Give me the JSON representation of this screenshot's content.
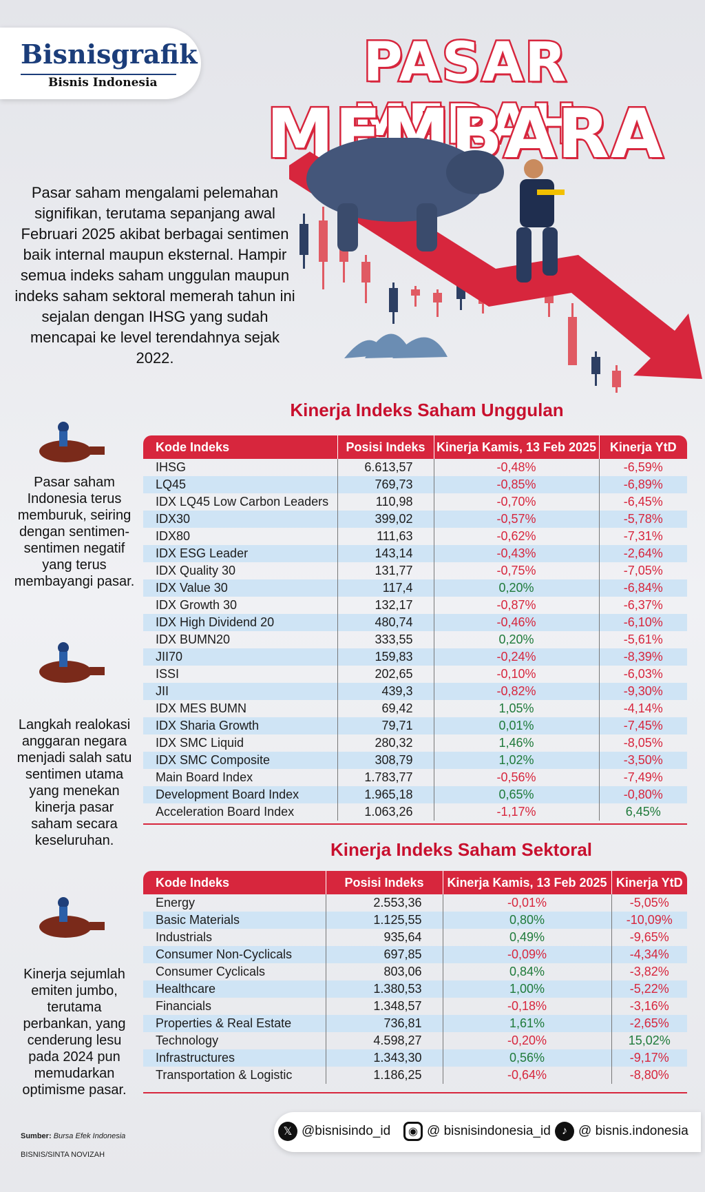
{
  "logo": {
    "brand": "Bisnisgrafik",
    "publisher": "Bisnis Indonesia"
  },
  "title": {
    "line1": "PASAR MERAH",
    "line2": "MEMBARA"
  },
  "intro": "Pasar saham mengalami pelemahan signifikan, terutama sepanjang awal Februari 2025 akibat berbagai sentimen baik internal maupun eksternal. Hampir semua indeks saham unggulan maupun indeks saham sektoral memerah tahun ini sejalan dengan IHSG yang sudah mencapai ke level terendahnya sejak 2022.",
  "colors": {
    "red": "#d7263d",
    "blue": "#cfe4f5",
    "green": "#1f7a3a"
  },
  "unggulan": {
    "heading": "Kinerja Indeks Saham Unggulan",
    "headers": [
      "Kode Indeks",
      "Posisi Indeks",
      "Kinerja Kamis, 13 Feb 2025",
      "Kinerja YtD"
    ],
    "rows": [
      [
        "IHSG",
        "6.613,57",
        "-0,48%",
        "-6,59%"
      ],
      [
        "LQ45",
        "769,73",
        "-0,85%",
        "-6,89%"
      ],
      [
        "IDX LQ45 Low Carbon Leaders",
        "110,98",
        "-0,70%",
        "-6,45%"
      ],
      [
        "IDX30",
        "399,02",
        "-0,57%",
        "-5,78%"
      ],
      [
        "IDX80",
        "111,63",
        "-0,62%",
        "-7,31%"
      ],
      [
        "IDX ESG Leader",
        "143,14",
        "-0,43%",
        "-2,64%"
      ],
      [
        "IDX Quality 30",
        "131,77",
        "-0,75%",
        "-7,05%"
      ],
      [
        "IDX Value 30",
        "117,4",
        "0,20%",
        "-6,84%"
      ],
      [
        "IDX Growth 30",
        "132,17",
        "-0,87%",
        "-6,37%"
      ],
      [
        "IDX High Dividend 20",
        "480,74",
        "-0,46%",
        "-6,10%"
      ],
      [
        "IDX BUMN20",
        "333,55",
        "0,20%",
        "-5,61%"
      ],
      [
        "JII70",
        "159,83",
        "-0,24%",
        "-8,39%"
      ],
      [
        "ISSI",
        "202,65",
        "-0,10%",
        "-6,03%"
      ],
      [
        "JII",
        "439,3",
        "-0,82%",
        "-9,30%"
      ],
      [
        "IDX MES BUMN",
        "69,42",
        "1,05%",
        "-4,14%"
      ],
      [
        "IDX Sharia Growth",
        "79,71",
        "0,01%",
        "-7,45%"
      ],
      [
        "IDX SMC Liquid",
        "280,32",
        "1,46%",
        "-8,05%"
      ],
      [
        "IDX SMC Composite",
        "308,79",
        "1,02%",
        "-3,50%"
      ],
      [
        "Main Board Index",
        "1.783,77",
        "-0,56%",
        "-7,49%"
      ],
      [
        "Development Board Index",
        "1.965,18",
        "0,65%",
        "-0,80%"
      ],
      [
        "Acceleration Board Index",
        "1.063,26",
        "-1,17%",
        "6,45%"
      ]
    ]
  },
  "sektoral": {
    "heading": "Kinerja Indeks Saham Sektoral",
    "headers": [
      "Kode Indeks",
      "Posisi Indeks",
      "Kinerja Kamis, 13 Feb 2025",
      "Kinerja YtD"
    ],
    "rows": [
      [
        "Energy",
        "2.553,36",
        "-0,01%",
        "-5,05%"
      ],
      [
        "Basic Materials",
        "1.125,55",
        "0,80%",
        "-10,09%"
      ],
      [
        "Industrials",
        "935,64",
        "0,49%",
        "-9,65%"
      ],
      [
        "Consumer Non-Cyclicals",
        "697,85",
        "-0,09%",
        "-4,34%"
      ],
      [
        "Consumer Cyclicals",
        "803,06",
        "0,84%",
        "-3,82%"
      ],
      [
        "Healthcare",
        "1.380,53",
        "1,00%",
        "-5,22%"
      ],
      [
        "Financials",
        "1.348,57",
        "-0,18%",
        "-3,16%"
      ],
      [
        "Properties & Real Estate",
        "736,81",
        "1,61%",
        "-2,65%"
      ],
      [
        "Technology",
        "4.598,27",
        "-0,20%",
        "15,02%"
      ],
      [
        "Infrastructures",
        "1.343,30",
        "0,56%",
        "-9,17%"
      ],
      [
        "Transportation & Logistic",
        "1.186,25",
        "-0,64%",
        "-8,80%"
      ]
    ]
  },
  "side": [
    "Pasar saham Indonesia terus memburuk, seiring dengan sentimen-sentimen negatif yang terus membayangi pasar.",
    "Langkah realokasi anggaran negara menjadi salah satu sentimen utama yang menekan kinerja pasar saham secara keseluruhan.",
    "Kinerja sejumlah emiten jumbo, terutama perbankan, yang cenderung lesu pada 2024 pun memudarkan optimisme pasar."
  ],
  "source": {
    "label": "Sumber:",
    "value": "Bursa Efek Indonesia"
  },
  "credit": "BISNIS/SINTA NOVIZAH",
  "social": {
    "x": "@bisnisindo_id",
    "instagram": "@ bisnisindonesia_id",
    "tiktok": "@ bisnis.indonesia"
  }
}
